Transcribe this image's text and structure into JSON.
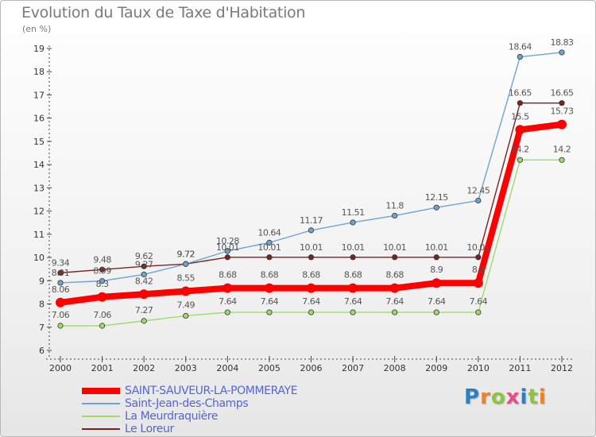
{
  "title": "Evolution du Taux de Taxe d'Habitation",
  "unit_label": "(en %)",
  "logo": {
    "text": "Proxiti",
    "letter_colors": [
      "#2e7fc0",
      "#e8842a",
      "#8cc63f",
      "#e84a8a",
      "#2e7fc0",
      "#8cc63f",
      "#e8842a"
    ]
  },
  "chart_data": {
    "type": "line",
    "title": "Evolution du Taux de Taxe d'Habitation",
    "ylabel": "(en %)",
    "xlabel": "",
    "x": [
      "2000",
      "2001",
      "2002",
      "2003",
      "2004",
      "2005",
      "2006",
      "2007",
      "2008",
      "2009",
      "2010",
      "2011",
      "2012"
    ],
    "ylim": [
      6,
      19
    ],
    "yticks": [
      "6",
      "7",
      "8",
      "9",
      "10",
      "11",
      "12",
      "13",
      "14",
      "15",
      "16",
      "17",
      "18",
      "19"
    ],
    "grid": false,
    "legend_position": "bottom-left",
    "series": [
      {
        "name": "Le Loreur",
        "color": "#7b2323",
        "values": [
          9.34,
          9.48,
          9.62,
          9.72,
          10.01,
          10.01,
          10.01,
          10.01,
          10.01,
          10.01,
          10.01,
          16.65,
          16.65
        ],
        "labels": [
          "9.34",
          "9.48",
          "9.62",
          "9.72",
          "10.01",
          "10.01",
          "10.01",
          "10.01",
          "10.01",
          "10.01",
          "10.01",
          "16.65",
          "16.65"
        ]
      },
      {
        "name": "Saint-Jean-des-Champs",
        "color": "#6fa3d0",
        "values": [
          8.91,
          8.99,
          9.27,
          9.72,
          10.28,
          10.64,
          11.17,
          11.51,
          11.8,
          12.15,
          12.45,
          18.64,
          18.83
        ],
        "labels": [
          "8.91",
          "8.99",
          "9.27",
          "9.72",
          "10.28",
          "10.64",
          "11.17",
          "11.51",
          "11.8",
          "12.15",
          "12.45",
          "18.64",
          "18.83"
        ]
      },
      {
        "name": "La Meurdraquière",
        "color": "#9edb6a",
        "values": [
          7.06,
          7.06,
          7.27,
          7.49,
          7.64,
          7.64,
          7.64,
          7.64,
          7.64,
          7.64,
          7.64,
          14.2,
          14.2
        ],
        "labels": [
          "7.06",
          "7.06",
          "7.27",
          "7.49",
          "7.64",
          "7.64",
          "7.64",
          "7.64",
          "7.64",
          "7.64",
          "7.64",
          "14.2",
          "14.2"
        ]
      },
      {
        "name": "SAINT-SAUVEUR-LA-POMMERAYE",
        "color": "#ff0000",
        "values": [
          8.06,
          8.3,
          8.42,
          8.55,
          8.68,
          8.68,
          8.68,
          8.68,
          8.68,
          8.9,
          8.9,
          15.5,
          15.73
        ],
        "labels": [
          "8.06",
          "8.3",
          "8.42",
          "8.55",
          "8.68",
          "8.68",
          "8.68",
          "8.68",
          "8.68",
          "8.9",
          "8.9",
          "15.5",
          "15.73"
        ]
      }
    ]
  },
  "legend": [
    {
      "label": "SAINT-SAUVEUR-LA-POMMERAYE",
      "color": "#ff0000",
      "text_color": "#5566cc"
    },
    {
      "label": "Saint-Jean-des-Champs",
      "color": "#6fa3d0",
      "text_color": "#5566cc"
    },
    {
      "label": "La Meurdraquière",
      "color": "#9edb6a",
      "text_color": "#5566cc"
    },
    {
      "label": "Le Loreur",
      "color": "#7b2323",
      "text_color": "#5566cc"
    }
  ]
}
